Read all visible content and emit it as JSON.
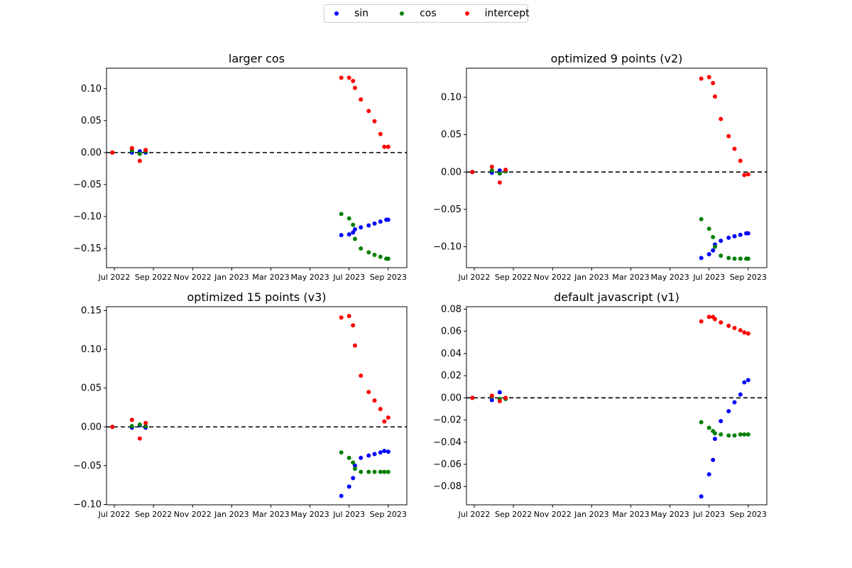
{
  "legend": {
    "items": [
      {
        "label": "sin",
        "color": "#0000ff"
      },
      {
        "label": "cos",
        "color": "#008000"
      },
      {
        "label": "intercept",
        "color": "#ff0000"
      }
    ]
  },
  "chart_data": [
    {
      "type": "scatter",
      "title": "larger cos",
      "x_tick_labels": [
        "Jul 2022",
        "Sep 2022",
        "Nov 2022",
        "Jan 2023",
        "Mar 2023",
        "May 2023",
        "Jul 2023",
        "Sep 2023"
      ],
      "x_ticks_month_index": [
        0,
        2,
        4,
        6,
        8,
        10,
        12,
        14
      ],
      "xlim_month_index": [
        -0.4,
        14.95
      ],
      "ylim": [
        -0.18,
        0.132
      ],
      "y_ticks": [
        -0.15,
        -0.1,
        -0.05,
        0.0,
        0.05,
        0.1
      ],
      "y_tick_labels": [
        "−0.15",
        "−0.10",
        "−0.05",
        "0.00",
        "0.05",
        "0.10"
      ],
      "hline": 0,
      "x_month_index": [
        -0.1,
        0.9,
        1.3,
        1.6,
        11.6,
        12.0,
        12.2,
        12.3,
        12.6,
        13.0,
        13.3,
        13.6,
        13.9,
        14.0
      ],
      "series": [
        {
          "name": "sin",
          "points": [
            [
              -0.1,
              0.0
            ],
            [
              0.9,
              0.0
            ],
            [
              1.3,
              0.002
            ],
            [
              1.6,
              0.0
            ],
            [
              11.6,
              -0.129
            ],
            [
              12.0,
              -0.128
            ],
            [
              12.2,
              -0.125
            ],
            [
              12.3,
              -0.12
            ],
            [
              12.6,
              -0.117
            ],
            [
              13.0,
              -0.114
            ],
            [
              13.3,
              -0.111
            ],
            [
              13.6,
              -0.108
            ],
            [
              13.9,
              -0.105
            ],
            [
              14.0,
              -0.105
            ]
          ]
        },
        {
          "name": "cos",
          "points": [
            [
              -0.1,
              0.0
            ],
            [
              0.9,
              0.003
            ],
            [
              1.3,
              -0.002
            ],
            [
              1.6,
              0.002
            ],
            [
              11.6,
              -0.096
            ],
            [
              12.0,
              -0.103
            ],
            [
              12.2,
              -0.113
            ],
            [
              12.3,
              -0.135
            ],
            [
              12.6,
              -0.15
            ],
            [
              13.0,
              -0.156
            ],
            [
              13.3,
              -0.16
            ],
            [
              13.6,
              -0.163
            ],
            [
              13.9,
              -0.166
            ],
            [
              14.0,
              -0.166
            ]
          ]
        },
        {
          "name": "intercept",
          "points": [
            [
              -0.1,
              0.0
            ],
            [
              0.9,
              0.007
            ],
            [
              1.3,
              -0.013
            ],
            [
              1.6,
              0.004
            ],
            [
              11.6,
              0.117
            ],
            [
              12.0,
              0.117
            ],
            [
              12.2,
              0.112
            ],
            [
              12.3,
              0.101
            ],
            [
              12.6,
              0.083
            ],
            [
              13.0,
              0.065
            ],
            [
              13.3,
              0.049
            ],
            [
              13.6,
              0.029
            ],
            [
              13.8,
              0.009
            ],
            [
              14.0,
              0.009
            ]
          ]
        }
      ]
    },
    {
      "type": "scatter",
      "title": "optimized 9 points (v2)",
      "x_tick_labels": [
        "Jul 2022",
        "Sep 2022",
        "Nov 2022",
        "Jan 2023",
        "Mar 2023",
        "May 2023",
        "Jul 2023",
        "Sep 2023"
      ],
      "x_ticks_month_index": [
        0,
        2,
        4,
        6,
        8,
        10,
        12,
        14
      ],
      "xlim_month_index": [
        -0.4,
        14.95
      ],
      "ylim": [
        -0.128,
        0.139
      ],
      "y_ticks": [
        -0.1,
        -0.05,
        0.0,
        0.05,
        0.1
      ],
      "y_tick_labels": [
        "−0.10",
        "−0.05",
        "0.00",
        "0.05",
        "0.10"
      ],
      "hline": 0,
      "series": [
        {
          "name": "sin",
          "points": [
            [
              -0.1,
              0.0
            ],
            [
              0.9,
              -0.001
            ],
            [
              1.3,
              0.002
            ],
            [
              1.6,
              0.001
            ],
            [
              11.6,
              -0.115
            ],
            [
              12.0,
              -0.11
            ],
            [
              12.2,
              -0.105
            ],
            [
              12.3,
              -0.097
            ],
            [
              12.6,
              -0.092
            ],
            [
              13.0,
              -0.088
            ],
            [
              13.3,
              -0.086
            ],
            [
              13.6,
              -0.084
            ],
            [
              13.9,
              -0.082
            ],
            [
              14.0,
              -0.082
            ]
          ]
        },
        {
          "name": "cos",
          "points": [
            [
              -0.1,
              0.0
            ],
            [
              0.9,
              0.002
            ],
            [
              1.3,
              -0.002
            ],
            [
              1.6,
              0.001
            ],
            [
              11.6,
              -0.063
            ],
            [
              12.0,
              -0.076
            ],
            [
              12.2,
              -0.087
            ],
            [
              12.3,
              -0.1
            ],
            [
              12.6,
              -0.112
            ],
            [
              13.0,
              -0.115
            ],
            [
              13.3,
              -0.116
            ],
            [
              13.6,
              -0.116
            ],
            [
              13.9,
              -0.116
            ],
            [
              14.0,
              -0.116
            ]
          ]
        },
        {
          "name": "intercept",
          "points": [
            [
              -0.1,
              0.0
            ],
            [
              0.9,
              0.007
            ],
            [
              1.3,
              -0.014
            ],
            [
              1.6,
              0.003
            ],
            [
              11.6,
              0.125
            ],
            [
              12.0,
              0.127
            ],
            [
              12.2,
              0.119
            ],
            [
              12.3,
              0.101
            ],
            [
              12.6,
              0.071
            ],
            [
              13.0,
              0.048
            ],
            [
              13.3,
              0.031
            ],
            [
              13.6,
              0.015
            ],
            [
              13.8,
              -0.004
            ],
            [
              14.0,
              -0.003
            ]
          ]
        }
      ]
    },
    {
      "type": "scatter",
      "title": "optimized 15 points (v3)",
      "x_tick_labels": [
        "Jul 2022",
        "Sep 2022",
        "Nov 2022",
        "Jan 2023",
        "Mar 2023",
        "May 2023",
        "Jul 2023",
        "Sep 2023"
      ],
      "x_ticks_month_index": [
        0,
        2,
        4,
        6,
        8,
        10,
        12,
        14
      ],
      "xlim_month_index": [
        -0.4,
        14.95
      ],
      "ylim": [
        -0.1005,
        0.155
      ],
      "y_ticks": [
        -0.1,
        -0.05,
        0.0,
        0.05,
        0.1,
        0.15
      ],
      "y_tick_labels": [
        "−0.10",
        "−0.05",
        "0.00",
        "0.05",
        "0.10",
        "0.15"
      ],
      "hline": 0,
      "series": [
        {
          "name": "sin",
          "points": [
            [
              -0.1,
              0.0
            ],
            [
              0.9,
              -0.001
            ],
            [
              1.3,
              0.002
            ],
            [
              1.6,
              -0.001
            ],
            [
              11.6,
              -0.089
            ],
            [
              12.0,
              -0.077
            ],
            [
              12.2,
              -0.066
            ],
            [
              12.3,
              -0.05
            ],
            [
              12.6,
              -0.04
            ],
            [
              13.0,
              -0.037
            ],
            [
              13.3,
              -0.035
            ],
            [
              13.6,
              -0.033
            ],
            [
              13.8,
              -0.031
            ],
            [
              14.0,
              -0.032
            ]
          ]
        },
        {
          "name": "cos",
          "points": [
            [
              -0.1,
              0.0
            ],
            [
              0.9,
              0.001
            ],
            [
              1.3,
              0.003
            ],
            [
              1.6,
              0.001
            ],
            [
              11.6,
              -0.033
            ],
            [
              12.0,
              -0.04
            ],
            [
              12.2,
              -0.046
            ],
            [
              12.3,
              -0.054
            ],
            [
              12.6,
              -0.058
            ],
            [
              13.0,
              -0.058
            ],
            [
              13.3,
              -0.058
            ],
            [
              13.6,
              -0.058
            ],
            [
              13.8,
              -0.058
            ],
            [
              14.0,
              -0.058
            ]
          ]
        },
        {
          "name": "intercept",
          "points": [
            [
              -0.1,
              0.0
            ],
            [
              0.9,
              0.009
            ],
            [
              1.3,
              -0.015
            ],
            [
              1.6,
              0.005
            ],
            [
              11.6,
              0.141
            ],
            [
              12.0,
              0.143
            ],
            [
              12.2,
              0.131
            ],
            [
              12.3,
              0.105
            ],
            [
              12.6,
              0.066
            ],
            [
              13.0,
              0.045
            ],
            [
              13.3,
              0.034
            ],
            [
              13.6,
              0.023
            ],
            [
              13.8,
              0.007
            ],
            [
              14.0,
              0.012
            ]
          ]
        }
      ]
    },
    {
      "type": "scatter",
      "title": "default javascript (v1)",
      "x_tick_labels": [
        "Jul 2022",
        "Sep 2022",
        "Nov 2022",
        "Jan 2023",
        "Mar 2023",
        "May 2023",
        "Jul 2023",
        "Sep 2023"
      ],
      "x_ticks_month_index": [
        0,
        2,
        4,
        6,
        8,
        10,
        12,
        14
      ],
      "xlim_month_index": [
        -0.4,
        14.95
      ],
      "ylim": [
        -0.0965,
        0.0822
      ],
      "y_ticks": [
        -0.08,
        -0.06,
        -0.04,
        -0.02,
        0.0,
        0.02,
        0.04,
        0.06,
        0.08
      ],
      "y_tick_labels": [
        "−0.08",
        "−0.06",
        "−0.04",
        "−0.02",
        "0.00",
        "0.02",
        "0.04",
        "0.06",
        "0.08"
      ],
      "hline": 0,
      "series": [
        {
          "name": "sin",
          "points": [
            [
              -0.1,
              0.0
            ],
            [
              0.9,
              -0.002
            ],
            [
              1.3,
              0.005
            ],
            [
              1.6,
              -0.001
            ],
            [
              11.6,
              -0.089
            ],
            [
              12.0,
              -0.069
            ],
            [
              12.2,
              -0.056
            ],
            [
              12.3,
              -0.037
            ],
            [
              12.6,
              -0.021
            ],
            [
              13.0,
              -0.012
            ],
            [
              13.3,
              -0.004
            ],
            [
              13.6,
              0.003
            ],
            [
              13.8,
              0.014
            ],
            [
              14.0,
              0.016
            ]
          ]
        },
        {
          "name": "cos",
          "points": [
            [
              -0.1,
              0.0
            ],
            [
              0.9,
              0.001
            ],
            [
              1.3,
              -0.001
            ],
            [
              1.6,
              -0.001
            ],
            [
              11.6,
              -0.022
            ],
            [
              12.0,
              -0.027
            ],
            [
              12.2,
              -0.03
            ],
            [
              12.3,
              -0.032
            ],
            [
              12.6,
              -0.033
            ],
            [
              13.0,
              -0.034
            ],
            [
              13.3,
              -0.034
            ],
            [
              13.6,
              -0.033
            ],
            [
              13.8,
              -0.033
            ],
            [
              14.0,
              -0.033
            ]
          ]
        },
        {
          "name": "intercept",
          "points": [
            [
              -0.1,
              0.0
            ],
            [
              0.9,
              0.002
            ],
            [
              1.3,
              -0.003
            ],
            [
              1.6,
              0.0
            ],
            [
              11.6,
              0.069
            ],
            [
              12.0,
              0.073
            ],
            [
              12.2,
              0.073
            ],
            [
              12.3,
              0.071
            ],
            [
              12.6,
              0.068
            ],
            [
              13.0,
              0.065
            ],
            [
              13.3,
              0.063
            ],
            [
              13.6,
              0.061
            ],
            [
              13.8,
              0.059
            ],
            [
              14.0,
              0.058
            ]
          ]
        }
      ]
    }
  ]
}
